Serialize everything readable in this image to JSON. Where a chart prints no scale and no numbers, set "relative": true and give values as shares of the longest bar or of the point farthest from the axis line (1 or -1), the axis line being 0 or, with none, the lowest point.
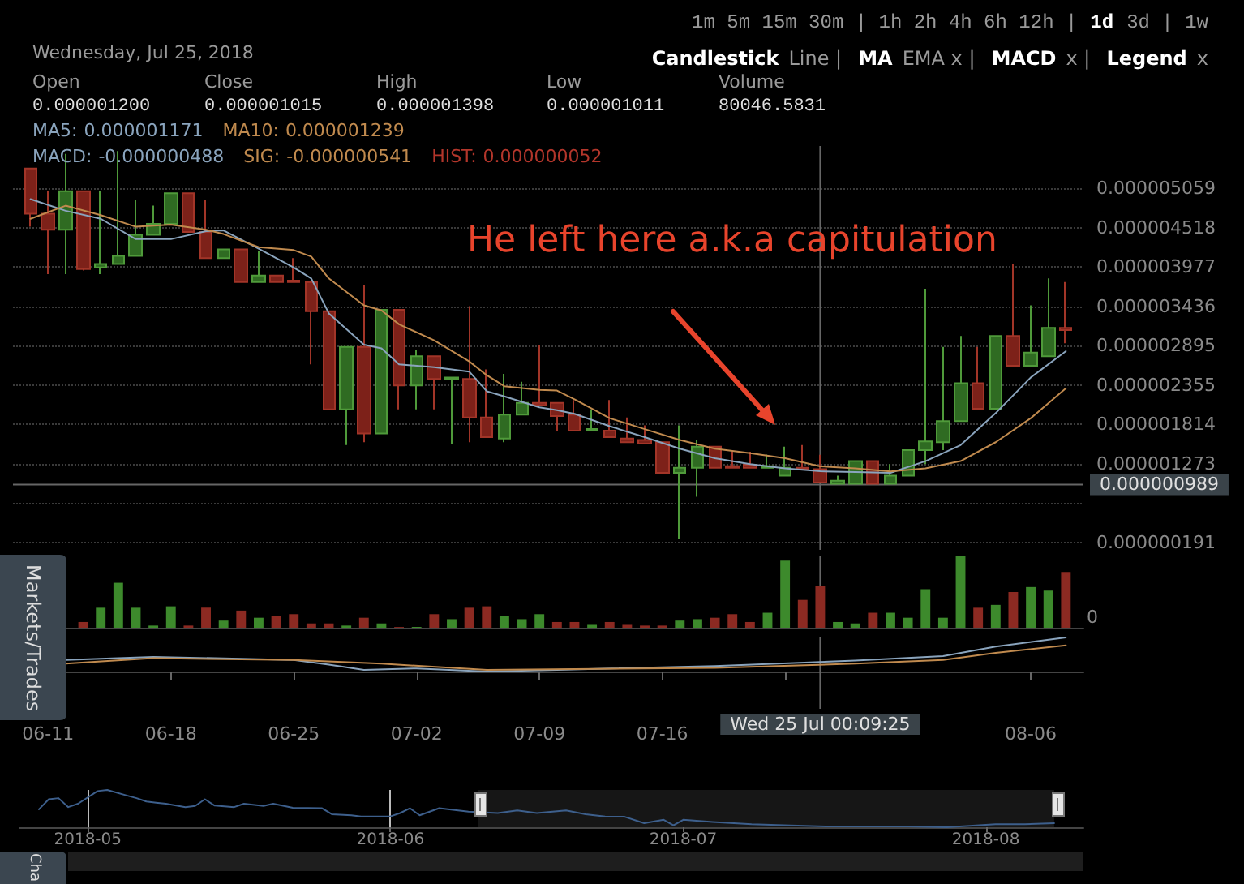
{
  "chart_data": [
    {
      "type": "candlestick",
      "x": [
        "2018-06-10",
        "2018-06-11",
        "2018-06-12",
        "2018-06-13",
        "2018-06-14",
        "2018-06-15",
        "2018-06-16",
        "2018-06-17",
        "2018-06-18",
        "2018-06-19",
        "2018-06-20",
        "2018-06-21",
        "2018-06-22",
        "2018-06-23",
        "2018-06-24",
        "2018-06-25",
        "2018-06-26",
        "2018-06-27",
        "2018-06-28",
        "2018-06-29",
        "2018-06-30",
        "2018-07-01",
        "2018-07-02",
        "2018-07-03",
        "2018-07-04",
        "2018-07-05",
        "2018-07-06",
        "2018-07-07",
        "2018-07-08",
        "2018-07-09",
        "2018-07-10",
        "2018-07-11",
        "2018-07-12",
        "2018-07-13",
        "2018-07-14",
        "2018-07-15",
        "2018-07-16",
        "2018-07-17",
        "2018-07-18",
        "2018-07-19",
        "2018-07-20",
        "2018-07-21",
        "2018-07-22",
        "2018-07-23",
        "2018-07-24",
        "2018-07-25",
        "2018-07-26",
        "2018-07-27",
        "2018-07-28",
        "2018-07-29",
        "2018-07-30",
        "2018-07-31",
        "2018-08-01",
        "2018-08-02",
        "2018-08-03",
        "2018-08-04",
        "2018-08-05",
        "2018-08-06",
        "2018-08-07",
        "2018-08-08"
      ],
      "ohlc": [
        [
          5.33e-06,
          5.33e-06,
          4.53e-06,
          4.71e-06
        ],
        [
          4.71e-06,
          5.02e-06,
          3.88e-06,
          4.49e-06
        ],
        [
          4.49e-06,
          5.53e-06,
          3.88e-06,
          5.02e-06
        ],
        [
          5.02e-06,
          5.02e-06,
          3.93e-06,
          3.95e-06
        ],
        [
          3.97e-06,
          5.02e-06,
          3.88e-06,
          4.02e-06
        ],
        [
          4.02e-06,
          5.57e-06,
          4.02e-06,
          4.13e-06
        ],
        [
          4.13e-06,
          4.9e-06,
          4.13e-06,
          4.42e-06
        ],
        [
          4.42e-06,
          4.82e-06,
          4.42e-06,
          4.57e-06
        ],
        [
          4.57e-06,
          4.99e-06,
          4.57e-06,
          4.99e-06
        ],
        [
          4.99e-06,
          4.99e-06,
          4.46e-06,
          4.46e-06
        ],
        [
          4.46e-06,
          4.9e-06,
          4.1e-06,
          4.1e-06
        ],
        [
          4.1e-06,
          4.22e-06,
          4.1e-06,
          4.22e-06
        ],
        [
          4.22e-06,
          4.22e-06,
          3.77e-06,
          3.77e-06
        ],
        [
          3.77e-06,
          4.19e-06,
          3.77e-06,
          3.86e-06
        ],
        [
          3.86e-06,
          3.86e-06,
          3.77e-06,
          3.77e-06
        ],
        [
          3.79e-06,
          4.1e-06,
          3.77e-06,
          3.77e-06
        ],
        [
          3.77e-06,
          3.77e-06,
          2.64e-06,
          3.37e-06
        ],
        [
          3.37e-06,
          3.37e-06,
          2.02e-06,
          2.02e-06
        ],
        [
          2.02e-06,
          2.88e-06,
          1.53e-06,
          2.88e-06
        ],
        [
          2.88e-06,
          3.73e-06,
          1.57e-06,
          1.69e-06
        ],
        [
          1.69e-06,
          3.39e-06,
          1.69e-06,
          3.39e-06
        ],
        [
          3.39e-06,
          3.39e-06,
          2.02e-06,
          2.35e-06
        ],
        [
          2.35e-06,
          2.84e-06,
          2.02e-06,
          2.75e-06
        ],
        [
          2.75e-06,
          2.75e-06,
          2.02e-06,
          2.44e-06
        ],
        [
          2.44e-06,
          2.46e-06,
          1.55e-06,
          2.46e-06
        ],
        [
          2.44e-06,
          3.44e-06,
          1.57e-06,
          1.91e-06
        ],
        [
          1.91e-06,
          2.57e-06,
          1.64e-06,
          1.64e-06
        ],
        [
          1.62e-06,
          2.51e-06,
          1.57e-06,
          1.95e-06
        ],
        [
          1.95e-06,
          2.4e-06,
          1.95e-06,
          2.11e-06
        ],
        [
          2.11e-06,
          2.91e-06,
          2.08e-06,
          2.08e-06
        ],
        [
          2.11e-06,
          2.11e-06,
          1.73e-06,
          1.93e-06
        ],
        [
          1.95e-06,
          2.15e-06,
          1.73e-06,
          1.73e-06
        ],
        [
          1.73e-06,
          2.02e-06,
          1.73e-06,
          1.75e-06
        ],
        [
          1.73e-06,
          2.15e-06,
          1.64e-06,
          1.64e-06
        ],
        [
          1.62e-06,
          1.91e-06,
          1.57e-06,
          1.57e-06
        ],
        [
          1.6e-06,
          1.8e-06,
          1.55e-06,
          1.55e-06
        ],
        [
          1.57e-06,
          1.57e-06,
          1.15e-06,
          1.15e-06
        ],
        [
          1.15e-06,
          1.8e-06,
          2.4e-07,
          1.22e-06
        ],
        [
          1.22e-06,
          1.6e-06,
          8.2e-07,
          1.51e-06
        ],
        [
          1.51e-06,
          1.51e-06,
          1.22e-06,
          1.22e-06
        ],
        [
          1.24e-06,
          1.44e-06,
          1.22e-06,
          1.22e-06
        ],
        [
          1.26e-06,
          1.44e-06,
          1.22e-06,
          1.22e-06
        ],
        [
          1.22e-06,
          1.4e-06,
          1.22e-06,
          1.24e-06
        ],
        [
          1.11e-06,
          1.51e-06,
          1.11e-06,
          1.22e-06
        ],
        [
          1.22e-06,
          1.53e-06,
          1.2e-06,
          1.2e-06
        ],
        [
          1.2e-06,
          1.398e-06,
          1.011e-06,
          1.015e-06
        ],
        [
          1e-06,
          1.11e-06,
          1e-06,
          1.04e-06
        ],
        [
          1e-06,
          1.31e-06,
          1e-06,
          1.31e-06
        ],
        [
          1.31e-06,
          1.31e-06,
          1e-06,
          1e-06
        ],
        [
          1e-06,
          1.27e-06,
          1e-06,
          1.11e-06
        ],
        [
          1.11e-06,
          1.46e-06,
          1.11e-06,
          1.46e-06
        ],
        [
          1.46e-06,
          3.68e-06,
          1.27e-06,
          1.58e-06
        ],
        [
          1.57e-06,
          2.88e-06,
          1.46e-06,
          1.86e-06
        ],
        [
          1.86e-06,
          3.03e-06,
          1.86e-06,
          2.38e-06
        ],
        [
          2.38e-06,
          2.88e-06,
          2.03e-06,
          2.03e-06
        ],
        [
          2.03e-06,
          3.03e-06,
          2.03e-06,
          3.03e-06
        ],
        [
          3.03e-06,
          4.02e-06,
          2.62e-06,
          2.62e-06
        ],
        [
          2.62e-06,
          3.45e-06,
          2.62e-06,
          2.8e-06
        ],
        [
          2.75e-06,
          3.82e-06,
          2.75e-06,
          3.14e-06
        ],
        [
          3.14e-06,
          3.77e-06,
          2.93e-06,
          3.11e-06
        ]
      ],
      "series": [
        {
          "type": "line",
          "color": "#8aa4bd",
          "x": [
            "2018-06-10",
            "2018-06-12",
            "2018-06-14",
            "2018-06-16",
            "2018-06-18",
            "2018-06-20",
            "2018-06-21",
            "2018-06-23",
            "2018-06-25",
            "2018-06-26",
            "2018-06-27",
            "2018-06-29",
            "2018-06-30",
            "2018-07-01",
            "2018-07-03",
            "2018-07-05",
            "2018-07-06",
            "2018-07-07",
            "2018-07-09",
            "2018-07-10",
            "2018-07-11",
            "2018-07-13",
            "2018-07-15",
            "2018-07-17",
            "2018-07-19",
            "2018-07-21",
            "2018-07-23",
            "2018-07-25",
            "2018-07-27",
            "2018-07-29",
            "2018-07-31",
            "2018-08-02",
            "2018-08-04",
            "2018-08-06",
            "2018-08-08"
          ],
          "values": [
            4.91e-06,
            4.75e-06,
            4.64e-06,
            4.36e-06,
            4.36e-06,
            4.47e-06,
            4.48e-06,
            4.23e-06,
            3.97e-06,
            3.82e-06,
            3.34e-06,
            2.91e-06,
            2.86e-06,
            2.64e-06,
            2.6e-06,
            2.54e-06,
            2.27e-06,
            2.2e-06,
            2.05e-06,
            2.01e-06,
            1.96e-06,
            1.79e-06,
            1.64e-06,
            1.48e-06,
            1.35e-06,
            1.27e-06,
            1.21e-06,
            1.171e-06,
            1.16e-06,
            1.15e-06,
            1.31e-06,
            1.53e-06,
            1.97e-06,
            2.46e-06,
            2.82e-06
          ]
        },
        {
          "type": "line",
          "color": "#c08a4e",
          "x": [
            "2018-06-10",
            "2018-06-12",
            "2018-06-14",
            "2018-06-16",
            "2018-06-18",
            "2018-06-20",
            "2018-06-21",
            "2018-06-23",
            "2018-06-25",
            "2018-06-26",
            "2018-06-27",
            "2018-06-29",
            "2018-06-30",
            "2018-07-01",
            "2018-07-03",
            "2018-07-05",
            "2018-07-06",
            "2018-07-07",
            "2018-07-09",
            "2018-07-10",
            "2018-07-11",
            "2018-07-13",
            "2018-07-15",
            "2018-07-17",
            "2018-07-19",
            "2018-07-21",
            "2018-07-23",
            "2018-07-25",
            "2018-07-27",
            "2018-07-29",
            "2018-07-31",
            "2018-08-02",
            "2018-08-04",
            "2018-08-06",
            "2018-08-08"
          ],
          "values": [
            4.64e-06,
            4.82e-06,
            4.69e-06,
            4.53e-06,
            4.56e-06,
            4.49e-06,
            4.43e-06,
            4.25e-06,
            4.21e-06,
            4.12e-06,
            3.82e-06,
            3.45e-06,
            3.38e-06,
            3.19e-06,
            2.97e-06,
            2.68e-06,
            2.49e-06,
            2.34e-06,
            2.29e-06,
            2.28e-06,
            2.16e-06,
            1.9e-06,
            1.75e-06,
            1.6e-06,
            1.48e-06,
            1.42e-06,
            1.35e-06,
            1.239e-06,
            1.21e-06,
            1.17e-06,
            1.21e-06,
            1.31e-06,
            1.57e-06,
            1.9e-06,
            2.31e-06
          ]
        }
      ],
      "xlim": [
        "2018-06-09",
        "2018-08-09"
      ],
      "ylim": [
        9e-08,
        5.64e-06
      ],
      "yticks": [
        {
          "value": 1.91e-07,
          "label": "0.000000191"
        },
        {
          "value": 7.32e-07,
          "label": null
        },
        {
          "value": 1.273e-06,
          "label": "0.000001273"
        },
        {
          "value": 1.814e-06,
          "label": "0.000001814"
        },
        {
          "value": 2.355e-06,
          "label": "0.000002355"
        },
        {
          "value": 2.895e-06,
          "label": "0.000002895"
        },
        {
          "value": 3.436e-06,
          "label": "0.000003436"
        },
        {
          "value": 3.977e-06,
          "label": "0.000003977"
        },
        {
          "value": 4.518e-06,
          "label": "0.000004518"
        },
        {
          "value": 5.059e-06,
          "label": "0.000005059"
        }
      ],
      "tick_labels": "y",
      "grid": "y",
      "ref_lines": [
        {
          "axis": "x",
          "value": "2018-07-25",
          "color": "#666666"
        },
        {
          "axis": "y",
          "value": 9.89e-07,
          "label": "0.000000989",
          "color": "#666666"
        }
      ],
      "annotations": [
        "Wednesday, Jul 25, 2018",
        "Open",
        "0.000001200",
        "Close",
        "0.000001015",
        "High",
        "0.000001398",
        "Low",
        "0.000001011",
        "Volume",
        "80046.5831",
        "MA5:",
        "0.000001171",
        "MA10:",
        "0.000001239",
        "MACD:",
        "-0.000000488",
        "SIG:",
        "-0.000000541",
        "HIST:",
        "0.000000052",
        "1m 5m 15m 30m | 1h 2h 4h 6h 12h |",
        "1d",
        "3d | 1w",
        "Candlestick",
        "Line |",
        "MA",
        "EMA x |",
        "MACD",
        "x |",
        "Legend",
        "x",
        "He left here a.k.a capitulation",
        "Markets/Trades",
        "Cha"
      ]
    },
    {
      "type": "bar",
      "relative": true,
      "x": [
        "2018-06-13",
        "2018-06-14",
        "2018-06-15",
        "2018-06-16",
        "2018-06-17",
        "2018-06-18",
        "2018-06-19",
        "2018-06-20",
        "2018-06-21",
        "2018-06-22",
        "2018-06-23",
        "2018-06-24",
        "2018-06-25",
        "2018-06-26",
        "2018-06-27",
        "2018-06-28",
        "2018-06-29",
        "2018-06-30",
        "2018-07-01",
        "2018-07-02",
        "2018-07-03",
        "2018-07-04",
        "2018-07-05",
        "2018-07-06",
        "2018-07-07",
        "2018-07-08",
        "2018-07-09",
        "2018-07-10",
        "2018-07-11",
        "2018-07-12",
        "2018-07-13",
        "2018-07-14",
        "2018-07-15",
        "2018-07-16",
        "2018-07-17",
        "2018-07-18",
        "2018-07-19",
        "2018-07-20",
        "2018-07-21",
        "2018-07-22",
        "2018-07-23",
        "2018-07-24",
        "2018-07-25",
        "2018-07-26",
        "2018-07-27",
        "2018-07-28",
        "2018-07-29",
        "2018-07-30",
        "2018-07-31",
        "2018-08-01",
        "2018-08-02",
        "2018-08-03",
        "2018-08-04",
        "2018-08-05",
        "2018-08-06",
        "2018-08-07",
        "2018-08-08"
      ],
      "values": [
        0.08,
        0.28,
        0.63,
        0.28,
        0.03,
        0.3,
        0.03,
        0.28,
        0.1,
        0.24,
        0.14,
        0.17,
        0.19,
        0.06,
        0.06,
        0.03,
        0.14,
        0.06,
        0.01,
        0.01,
        0.19,
        0.12,
        0.28,
        0.3,
        0.17,
        0.12,
        0.19,
        0.08,
        0.08,
        0.04,
        0.08,
        0.04,
        0.03,
        0.03,
        0.1,
        0.12,
        0.14,
        0.19,
        0.08,
        0.21,
        0.94,
        0.39,
        0.58,
        0.08,
        0.06,
        0.21,
        0.21,
        0.14,
        0.54,
        0.14,
        1,
        0.28,
        0.32,
        0.5,
        0.57,
        0.52,
        0.78
      ],
      "colors": [
        "#8c2a22",
        "#3d8a2c",
        "#3d8a2c",
        "#3d8a2c",
        "#3d8a2c",
        "#3d8a2c",
        "#8c2a22",
        "#8c2a22",
        "#3d8a2c",
        "#8c2a22",
        "#3d8a2c",
        "#8c2a22",
        "#8c2a22",
        "#8c2a22",
        "#8c2a22",
        "#3d8a2c",
        "#8c2a22",
        "#3d8a2c",
        "#8c2a22",
        "#3d8a2c",
        "#8c2a22",
        "#3d8a2c",
        "#8c2a22",
        "#8c2a22",
        "#3d8a2c",
        "#3d8a2c",
        "#3d8a2c",
        "#8c2a22",
        "#8c2a22",
        "#3d8a2c",
        "#8c2a22",
        "#8c2a22",
        "#8c2a22",
        "#8c2a22",
        "#3d8a2c",
        "#3d8a2c",
        "#8c2a22",
        "#8c2a22",
        "#8c2a22",
        "#3d8a2c",
        "#3d8a2c",
        "#8c2a22",
        "#8c2a22",
        "#3d8a2c",
        "#3d8a2c",
        "#8c2a22",
        "#3d8a2c",
        "#3d8a2c",
        "#3d8a2c",
        "#3d8a2c",
        "#3d8a2c",
        "#8c2a22",
        "#3d8a2c",
        "#8c2a22",
        "#3d8a2c",
        "#3d8a2c",
        "#8c2a22"
      ],
      "xlim": [
        "2018-06-09",
        "2018-08-09"
      ],
      "tick_labels": false,
      "ref_lines": [
        {
          "axis": "x",
          "value": "2018-07-25",
          "color": "#666666"
        }
      ],
      "annotations": [
        "0"
      ]
    },
    {
      "type": "line",
      "relative": true,
      "series": [
        {
          "color": "#8aa4bd",
          "x": [
            "2018-06-12",
            "2018-06-17",
            "2018-06-25",
            "2018-06-27",
            "2018-06-29",
            "2018-07-02",
            "2018-07-06",
            "2018-07-10",
            "2018-07-19",
            "2018-07-27",
            "2018-08-01",
            "2018-08-04",
            "2018-08-08"
          ],
          "values": [
            0.34,
            0.43,
            0.34,
            0.2,
            0.05,
            0.09,
            0,
            0.05,
            0.16,
            0.32,
            0.45,
            0.73,
            1
          ]
        },
        {
          "color": "#c08a4e",
          "x": [
            "2018-06-12",
            "2018-06-17",
            "2018-06-25",
            "2018-06-30",
            "2018-07-06",
            "2018-07-19",
            "2018-07-27",
            "2018-08-01",
            "2018-08-04",
            "2018-08-08"
          ],
          "values": [
            0.23,
            0.39,
            0.34,
            0.23,
            0.05,
            0.11,
            0.23,
            0.34,
            0.55,
            0.77
          ]
        }
      ],
      "xlim": [
        "2018-06-09",
        "2018-08-09"
      ],
      "xticks": [
        {
          "value": "2018-06-11",
          "label": "06-11"
        },
        {
          "value": "2018-06-18",
          "label": "06-18"
        },
        {
          "value": "2018-06-25",
          "label": "06-25"
        },
        {
          "value": "2018-07-02",
          "label": "07-02"
        },
        {
          "value": "2018-07-09",
          "label": "07-09"
        },
        {
          "value": "2018-07-16",
          "label": "07-16"
        },
        {
          "value": "2018-07-23",
          "label": null
        },
        {
          "value": "2018-08-06",
          "label": "08-06"
        }
      ],
      "tick_labels": "x",
      "ref_lines": [
        {
          "axis": "x",
          "value": "2018-07-25",
          "label": "Wed 25 Jul 00:09:25",
          "color": "#666666"
        }
      ]
    },
    {
      "type": "line",
      "relative": true,
      "series": [
        {
          "color": "#3d5f8c",
          "x": [
            "2018-04-26",
            "2018-04-27",
            "2018-04-28",
            "2018-04-29",
            "2018-04-30",
            "2018-05-02",
            "2018-05-03",
            "2018-05-05",
            "2018-05-06",
            "2018-05-07",
            "2018-05-08",
            "2018-05-09",
            "2018-05-11",
            "2018-05-12",
            "2018-05-13",
            "2018-05-14",
            "2018-05-16",
            "2018-05-17",
            "2018-05-19",
            "2018-05-20",
            "2018-05-22",
            "2018-05-25",
            "2018-05-26",
            "2018-05-28",
            "2018-05-29",
            "2018-06-01",
            "2018-06-02",
            "2018-06-03",
            "2018-06-04",
            "2018-06-06",
            "2018-06-09",
            "2018-06-10",
            "2018-06-12",
            "2018-06-14",
            "2018-06-16",
            "2018-06-19",
            "2018-06-21",
            "2018-06-23",
            "2018-06-25",
            "2018-06-27",
            "2018-06-29",
            "2018-06-30",
            "2018-07-01",
            "2018-07-04",
            "2018-07-08",
            "2018-07-12",
            "2018-07-16",
            "2018-07-20",
            "2018-07-24",
            "2018-07-28",
            "2018-07-31",
            "2018-08-02",
            "2018-08-05",
            "2018-08-08"
          ],
          "values": [
            0.48,
            0.75,
            0.78,
            0.54,
            0.63,
            0.97,
            1,
            0.85,
            0.78,
            0.69,
            0.66,
            0.63,
            0.54,
            0.57,
            0.75,
            0.58,
            0.54,
            0.63,
            0.57,
            0.63,
            0.52,
            0.51,
            0.35,
            0.32,
            0.29,
            0.29,
            0.38,
            0.51,
            0.32,
            0.51,
            0.42,
            null,
            0.38,
            0.45,
            0.38,
            0.45,
            0.35,
            0.29,
            0.28,
            0.11,
            0.2,
            0.05,
            0.2,
            0.14,
            0.08,
            0.05,
            0.02,
            0.02,
            0.02,
            0,
            0.05,
            0.08,
            0.08,
            0.11
          ]
        }
      ],
      "xlim": [
        "2018-04-24",
        "2018-08-11"
      ],
      "xticks": [
        {
          "value": "2018-05-01",
          "label": "2018-05"
        },
        {
          "value": "2018-06-01",
          "label": "2018-06"
        },
        {
          "value": "2018-07-01",
          "label": "2018-07"
        },
        {
          "value": "2018-08-01",
          "label": "2018-08"
        }
      ],
      "tick_labels": "x",
      "grid": "x",
      "bands": [
        {
          "axis": "x",
          "from": "2018-06-10",
          "to": "2018-08-08",
          "color": "#161616"
        }
      ]
    }
  ]
}
